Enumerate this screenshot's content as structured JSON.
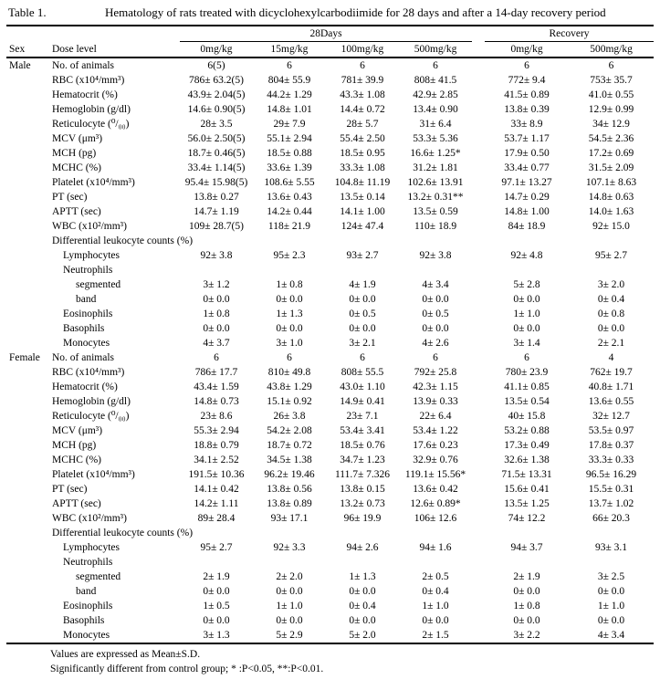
{
  "table": {
    "label": "Table 1.",
    "title": "Hematology of rats treated with dicyclohexylcarbodiimide for 28 days and after a 14-day recovery period",
    "col_groups": [
      {
        "label": "28Days",
        "span": 4
      },
      {
        "label": "Recovery",
        "span": 2
      }
    ],
    "header": {
      "sex": "Sex",
      "dose_level": "Dose level",
      "doses": [
        "0mg/kg",
        "15mg/kg",
        "100mg/kg",
        "500mg/kg",
        "0mg/kg",
        "500mg/kg"
      ]
    },
    "sections": [
      {
        "sex": "Male",
        "rows": [
          {
            "label": "No. of animals",
            "indent": 0,
            "values": [
              "6(5)",
              "6",
              "6",
              "6",
              "6",
              "6"
            ]
          },
          {
            "label": "RBC (x10⁴/mm³)",
            "indent": 0,
            "values": [
              "786± 63.2(5)",
              "804± 55.9",
              "781± 39.9",
              "808± 41.5",
              "772± 9.4",
              "753± 35.7"
            ]
          },
          {
            "label": "Hematocrit (%)",
            "indent": 0,
            "values": [
              "43.9± 2.04(5)",
              "44.2± 1.29",
              "43.3± 1.08",
              "42.9± 2.85",
              "41.5± 0.89",
              "41.0± 0.55"
            ]
          },
          {
            "label": "Hemoglobin (g/dl)",
            "indent": 0,
            "values": [
              "14.6± 0.90(5)",
              "14.8± 1.01",
              "14.4± 0.72",
              "13.4± 0.90",
              "13.8± 0.39",
              "12.9± 0.99"
            ]
          },
          {
            "label": "Reticulocyte (⁰/₀₀)",
            "indent": 0,
            "values": [
              "28± 3.5",
              "29± 7.9",
              "28± 5.7",
              "31± 6.4",
              "33± 8.9",
              "34± 12.9"
            ]
          },
          {
            "label": "MCV (μm³)",
            "indent": 0,
            "values": [
              "56.0± 2.50(5)",
              "55.1± 2.94",
              "55.4± 2.50",
              "53.3± 5.36",
              "53.7± 1.17",
              "54.5± 2.36"
            ]
          },
          {
            "label": "MCH (pg)",
            "indent": 0,
            "values": [
              "18.7± 0.46(5)",
              "18.5± 0.88",
              "18.5± 0.95",
              "16.6± 1.25*",
              "17.9± 0.50",
              "17.2± 0.69"
            ]
          },
          {
            "label": "MCHC (%)",
            "indent": 0,
            "values": [
              "33.4± 1.14(5)",
              "33.6± 1.39",
              "33.3± 1.08",
              "31.2± 1.81",
              "33.4± 0.77",
              "31.5± 2.09"
            ]
          },
          {
            "label": "Platelet (x10⁴/mm³)",
            "indent": 0,
            "values": [
              "95.4± 15.98(5)",
              "108.6± 5.55",
              "104.8± 11.19",
              "102.6± 13.91",
              "97.1± 13.27",
              "107.1± 8.63"
            ]
          },
          {
            "label": "PT (sec)",
            "indent": 0,
            "values": [
              "13.8± 0.27",
              "13.6± 0.43",
              "13.5± 0.14",
              "13.2± 0.31**",
              "14.7± 0.29",
              "14.8± 0.63"
            ]
          },
          {
            "label": "APTT (sec)",
            "indent": 0,
            "values": [
              "14.7± 1.19",
              "14.2± 0.44",
              "14.1± 1.00",
              "13.5± 0.59",
              "14.8± 1.00",
              "14.0± 1.63"
            ]
          },
          {
            "label": "WBC (x10²/mm³)",
            "indent": 0,
            "values": [
              "109± 28.7(5)",
              "118± 21.9",
              "124± 47.4",
              "110± 18.9",
              "84± 18.9",
              "92± 15.0"
            ]
          },
          {
            "label": "Differential leukocyte counts (%)",
            "indent": 0,
            "values": []
          },
          {
            "label": "Lymphocytes",
            "indent": 1,
            "values": [
              "92± 3.8",
              "95± 2.3",
              "93± 2.7",
              "92± 3.8",
              "92± 4.8",
              "95± 2.7"
            ]
          },
          {
            "label": "Neutrophils",
            "indent": 1,
            "values": []
          },
          {
            "label": "segmented",
            "indent": 2,
            "values": [
              "3± 1.2",
              "1± 0.8",
              "4± 1.9",
              "4± 3.4",
              "5± 2.8",
              "3± 2.0"
            ]
          },
          {
            "label": "band",
            "indent": 2,
            "values": [
              "0± 0.0",
              "0± 0.0",
              "0± 0.0",
              "0± 0.0",
              "0± 0.0",
              "0± 0.4"
            ]
          },
          {
            "label": "Eosinophils",
            "indent": 1,
            "values": [
              "1± 0.8",
              "1± 1.3",
              "0± 0.5",
              "0± 0.5",
              "1± 1.0",
              "0± 0.8"
            ]
          },
          {
            "label": "Basophils",
            "indent": 1,
            "values": [
              "0± 0.0",
              "0± 0.0",
              "0± 0.0",
              "0± 0.0",
              "0± 0.0",
              "0± 0.0"
            ]
          },
          {
            "label": "Monocytes",
            "indent": 1,
            "values": [
              "4± 3.7",
              "3± 1.0",
              "3± 2.1",
              "4± 2.6",
              "3± 1.4",
              "2± 2.1"
            ]
          }
        ]
      },
      {
        "sex": "Female",
        "rows": [
          {
            "label": "No. of animals",
            "indent": 0,
            "values": [
              "6",
              "6",
              "6",
              "6",
              "6",
              "4"
            ]
          },
          {
            "label": "RBC (x10⁴/mm³)",
            "indent": 0,
            "values": [
              "786± 17.7",
              "810± 49.8",
              "808± 55.5",
              "792± 25.8",
              "780± 23.9",
              "762± 19.7"
            ]
          },
          {
            "label": "Hematocrit (%)",
            "indent": 0,
            "values": [
              "43.4± 1.59",
              "43.8± 1.29",
              "43.0± 1.10",
              "42.3± 1.15",
              "41.1± 0.85",
              "40.8± 1.71"
            ]
          },
          {
            "label": "Hemoglobin (g/dl)",
            "indent": 0,
            "values": [
              "14.8± 0.73",
              "15.1± 0.92",
              "14.9± 0.41",
              "13.9± 0.33",
              "13.5± 0.54",
              "13.6± 0.55"
            ]
          },
          {
            "label": "Reticulocyte (⁰/₀₀)",
            "indent": 0,
            "values": [
              "23± 8.6",
              "26± 3.8",
              "23± 7.1",
              "22± 6.4",
              "40± 15.8",
              "32± 12.7"
            ]
          },
          {
            "label": "MCV (μm³)",
            "indent": 0,
            "values": [
              "55.3± 2.94",
              "54.2± 2.08",
              "53.4± 3.41",
              "53.4± 1.22",
              "53.2± 0.88",
              "53.5± 0.97"
            ]
          },
          {
            "label": "MCH (pg)",
            "indent": 0,
            "values": [
              "18.8± 0.79",
              "18.7± 0.72",
              "18.5± 0.76",
              "17.6± 0.23",
              "17.3± 0.49",
              "17.8± 0.37"
            ]
          },
          {
            "label": "MCHC (%)",
            "indent": 0,
            "values": [
              "34.1± 2.52",
              "34.5± 1.38",
              "34.7± 1.23",
              "32.9± 0.76",
              "32.6± 1.38",
              "33.3± 0.33"
            ]
          },
          {
            "label": "Platelet (x10⁴/mm³)",
            "indent": 0,
            "values": [
              "191.5± 10.36",
              "96.2± 19.46",
              "111.7± 7.326",
              "119.1± 15.56*",
              "71.5± 13.31",
              "96.5± 16.29"
            ]
          },
          {
            "label": "PT (sec)",
            "indent": 0,
            "values": [
              "14.1± 0.42",
              "13.8± 0.56",
              "13.8± 0.15",
              "13.6± 0.42",
              "15.6± 0.41",
              "15.5± 0.31"
            ]
          },
          {
            "label": "APTT (sec)",
            "indent": 0,
            "values": [
              "14.2± 1.11",
              "13.8± 0.89",
              "13.2± 0.73",
              "12.6± 0.89*",
              "13.5± 1.25",
              "13.7± 1.02"
            ]
          },
          {
            "label": "WBC (x10²/mm³)",
            "indent": 0,
            "values": [
              "89± 28.4",
              "93± 17.1",
              "96± 19.9",
              "106± 12.6",
              "74± 12.2",
              "66± 20.3"
            ]
          },
          {
            "label": "Differential leukocyte counts (%)",
            "indent": 0,
            "values": []
          },
          {
            "label": "Lymphocytes",
            "indent": 1,
            "values": [
              "95± 2.7",
              "92± 3.3",
              "94± 2.6",
              "94± 1.6",
              "94± 3.7",
              "93± 3.1"
            ]
          },
          {
            "label": "Neutrophils",
            "indent": 1,
            "values": []
          },
          {
            "label": "segmented",
            "indent": 2,
            "values": [
              "2± 1.9",
              "2± 2.0",
              "1± 1.3",
              "2± 0.5",
              "2± 1.9",
              "3± 2.5"
            ]
          },
          {
            "label": "band",
            "indent": 2,
            "values": [
              "0± 0.0",
              "0± 0.0",
              "0± 0.0",
              "0± 0.4",
              "0± 0.0",
              "0± 0.0"
            ]
          },
          {
            "label": "Eosinophils",
            "indent": 1,
            "values": [
              "1± 0.5",
              "1± 1.0",
              "0± 0.4",
              "1± 1.0",
              "1± 0.8",
              "1± 1.0"
            ]
          },
          {
            "label": "Basophils",
            "indent": 1,
            "values": [
              "0± 0.0",
              "0± 0.0",
              "0± 0.0",
              "0± 0.0",
              "0± 0.0",
              "0± 0.0"
            ]
          },
          {
            "label": "Monocytes",
            "indent": 1,
            "values": [
              "3± 1.3",
              "5± 2.9",
              "5± 2.0",
              "2± 1.5",
              "3± 2.2",
              "4± 3.4"
            ]
          }
        ]
      }
    ],
    "footnotes": [
      "Values are expressed as Mean±S.D.",
      "Significantly different from control group; * :P<0.05, **:P<0.01."
    ]
  }
}
